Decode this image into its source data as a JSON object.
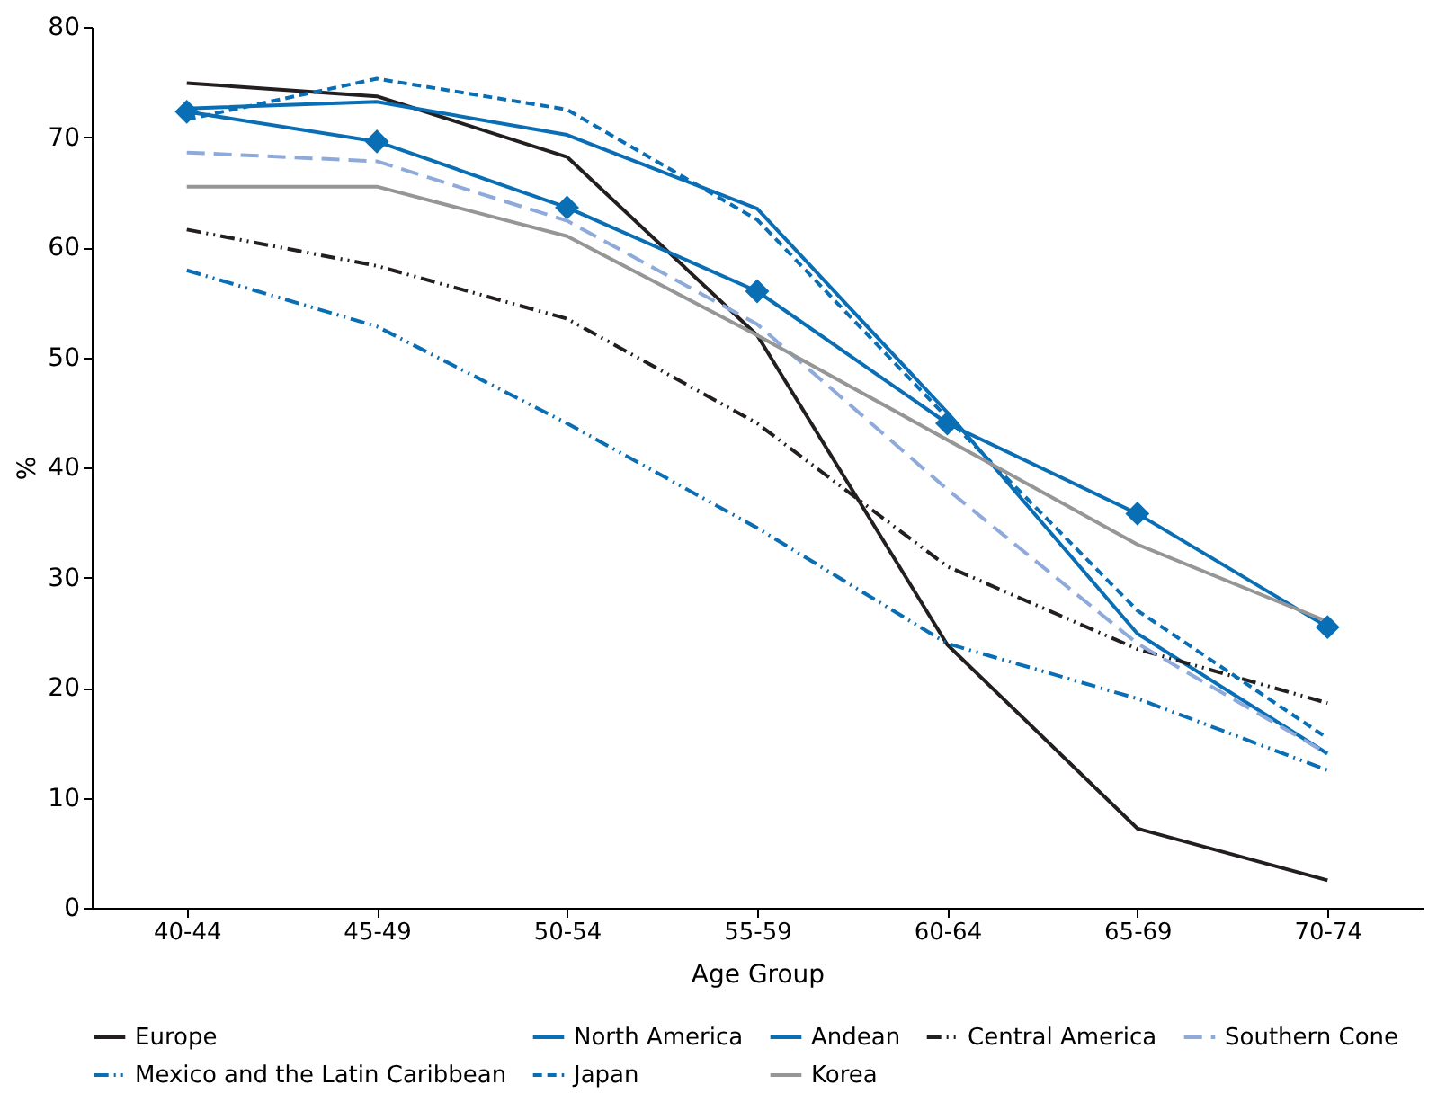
{
  "chart_data": {
    "type": "line",
    "xlabel": "Age Group",
    "ylabel": "%",
    "categories": [
      "40-44",
      "45-49",
      "50-54",
      "55-59",
      "60-64",
      "65-69",
      "70-74"
    ],
    "ylim": [
      0,
      80
    ],
    "yticks": [
      0,
      10,
      20,
      30,
      40,
      50,
      60,
      70,
      80
    ],
    "grid": false,
    "legend": "bottom",
    "series": [
      {
        "name": "Europe",
        "color": "#231f20",
        "line_style": "solid",
        "marker": "none",
        "values": [
          74.9,
          73.7,
          68.2,
          52,
          23.9,
          7.2,
          2.5
        ]
      },
      {
        "name": "North America",
        "color": "#0a6eb4",
        "line_style": "solid",
        "marker": "none",
        "values": [
          72.6,
          73.2,
          70.2,
          63.5,
          45,
          24.9,
          14
        ]
      },
      {
        "name": "Andean",
        "color": "#0a6eb4",
        "line_style": "solid",
        "marker": "diamond",
        "values": [
          72.3,
          69.6,
          63.6,
          56,
          44,
          35.8,
          25.5
        ]
      },
      {
        "name": "Central America",
        "color": "#231f20",
        "line_style": "dashdotdot",
        "marker": "none",
        "values": [
          61.6,
          58.3,
          53.5,
          44,
          31,
          23.5,
          18.6
        ]
      },
      {
        "name": "Southern Cone",
        "color": "#8eaadb",
        "line_style": "longdash",
        "marker": "none",
        "values": [
          68.6,
          67.8,
          62.4,
          53,
          38,
          24,
          14
        ]
      },
      {
        "name": "Mexico and the Latin Caribbean",
        "color": "#0a6eb4",
        "line_style": "dashdotdot",
        "marker": "none",
        "values": [
          57.9,
          52.8,
          44,
          34.5,
          24,
          19,
          12.5
        ]
      },
      {
        "name": "Japan",
        "color": "#0a6eb4",
        "line_style": "dashed",
        "marker": "none",
        "values": [
          71.6,
          75.3,
          72.5,
          62.5,
          44.5,
          27,
          15.4
        ]
      },
      {
        "name": "Korea",
        "color": "#969696",
        "line_style": "solid",
        "marker": "none",
        "values": [
          65.5,
          65.5,
          61,
          52,
          42.5,
          33,
          26
        ]
      }
    ]
  }
}
